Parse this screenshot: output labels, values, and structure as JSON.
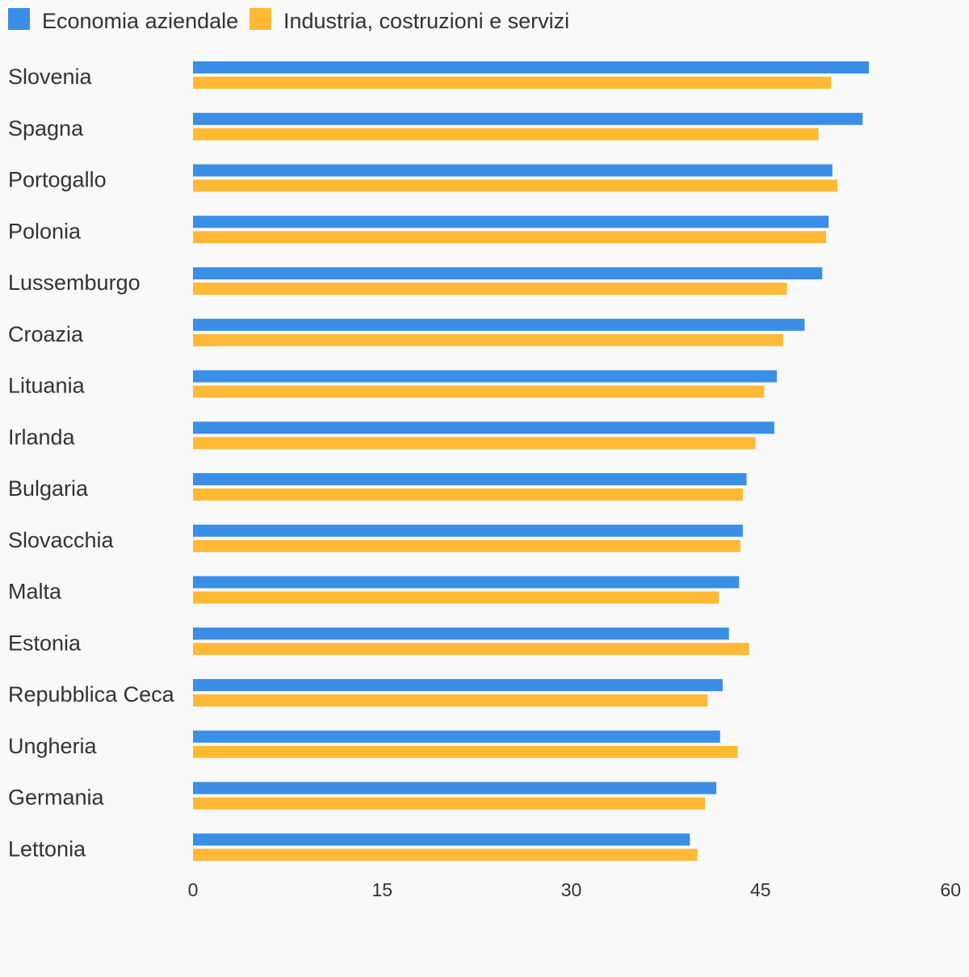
{
  "chart_data": {
    "type": "bar",
    "orientation": "horizontal",
    "title": "",
    "xlabel": "",
    "ylabel": "",
    "xlim": [
      0,
      60
    ],
    "ticks": [
      0,
      15,
      30,
      45,
      60
    ],
    "grid": false,
    "legend_position": "top-left",
    "categories": [
      "Slovenia",
      "Spagna",
      "Portogallo",
      "Polonia",
      "Lussemburgo",
      "Croazia",
      "Lituania",
      "Irlanda",
      "Bulgaria",
      "Slovacchia",
      "Malta",
      "Estonia",
      "Repubblica Ceca",
      "Ungheria",
      "Germania",
      "Lettonia"
    ],
    "series": [
      {
        "name": "Economia aziendale",
        "color": "#3a8ee6",
        "values": [
          53.6,
          53.1,
          50.7,
          50.4,
          49.9,
          48.5,
          46.3,
          46.1,
          43.9,
          43.6,
          43.3,
          42.5,
          42.0,
          41.8,
          41.5,
          39.4
        ]
      },
      {
        "name": "Industria, costruzioni e servizi",
        "color": "#ffb935",
        "values": [
          50.6,
          49.6,
          51.1,
          50.2,
          47.1,
          46.8,
          45.3,
          44.6,
          43.6,
          43.4,
          41.7,
          44.1,
          40.8,
          43.2,
          40.6,
          40.0
        ]
      }
    ]
  }
}
